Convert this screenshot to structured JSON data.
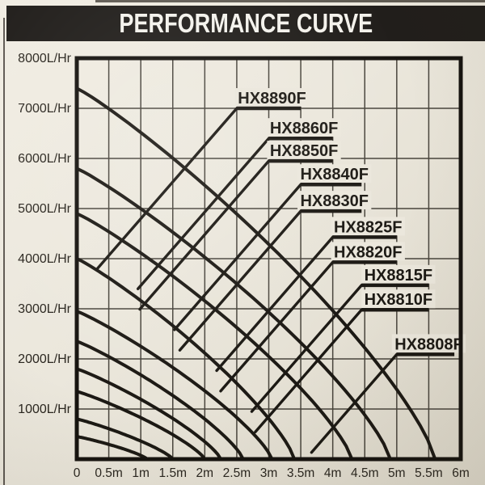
{
  "header": {
    "title": "PERFORMANCE CURVE"
  },
  "colors": {
    "paper": "#ebe7dc",
    "banner_bg": "#211e1b",
    "banner_text": "#f4f2ec",
    "ink": "#1c1914",
    "grid": "#48443c"
  },
  "chart_data": {
    "type": "line",
    "title": "PERFORMANCE CURVE",
    "grid": true,
    "xlim": [
      0,
      6
    ],
    "ylim": [
      0,
      8000
    ],
    "x_unit": "m",
    "y_unit": "L/Hr",
    "x_tick_values": [
      0,
      0.5,
      1,
      1.5,
      2,
      2.5,
      3,
      3.5,
      4,
      4.5,
      5,
      5.5,
      6
    ],
    "x_tick_labels": [
      "0",
      "0.5m",
      "1m",
      "1.5m",
      "2m",
      "2.5m",
      "3m",
      "3.5m",
      "4m",
      "4.5m",
      "5m",
      "5.5m",
      "6m"
    ],
    "y_tick_values": [
      1000,
      2000,
      3000,
      4000,
      5000,
      6000,
      7000,
      8000
    ],
    "y_tick_labels": [
      "1000L/Hr",
      "2000L/Hr",
      "3000L/Hr",
      "4000L/Hr",
      "5000L/Hr",
      "6000L/Hr",
      "7000L/Hr",
      "8000L/Hr"
    ],
    "series_note": "Each pump curve runs from its maximum flow at 0m head down to zero flow at maximum head; each label sits on a short horizontal rule joined to its curve by a straight leader line.",
    "series": [
      {
        "name": "HX8890F",
        "max_flow_lhr": 7400,
        "max_head_m": 5.6,
        "label": {
          "flow_level": 7000,
          "x_from_m": 2.5,
          "x_to_m": 3.5
        }
      },
      {
        "name": "HX8860F",
        "max_flow_lhr": 5800,
        "max_head_m": 4.9,
        "label": {
          "flow_level": 6400,
          "x_from_m": 3.0,
          "x_to_m": 4.0
        }
      },
      {
        "name": "HX8850F",
        "max_flow_lhr": 4900,
        "max_head_m": 4.3,
        "label": {
          "flow_level": 5950,
          "x_from_m": 3.0,
          "x_to_m": 4.0
        }
      },
      {
        "name": "HX8840F",
        "max_flow_lhr": 4000,
        "max_head_m": 3.4,
        "label": {
          "flow_level": 5480,
          "x_from_m": 3.5,
          "x_to_m": 4.45
        }
      },
      {
        "name": "HX8830F",
        "max_flow_lhr": 2950,
        "max_head_m": 3.05,
        "label": {
          "flow_level": 4950,
          "x_from_m": 3.5,
          "x_to_m": 4.45
        }
      },
      {
        "name": "HX8825F",
        "max_flow_lhr": 2350,
        "max_head_m": 2.6,
        "label": {
          "flow_level": 4430,
          "x_from_m": 4.0,
          "x_to_m": 5.0
        }
      },
      {
        "name": "HX8820F",
        "max_flow_lhr": 1800,
        "max_head_m": 2.25,
        "label": {
          "flow_level": 3930,
          "x_from_m": 4.0,
          "x_to_m": 5.0
        }
      },
      {
        "name": "HX8815F",
        "max_flow_lhr": 1350,
        "max_head_m": 2.0,
        "label": {
          "flow_level": 3470,
          "x_from_m": 4.45,
          "x_to_m": 5.5
        }
      },
      {
        "name": "HX8810F",
        "max_flow_lhr": 800,
        "max_head_m": 1.5,
        "label": {
          "flow_level": 2980,
          "x_from_m": 4.45,
          "x_to_m": 5.5
        }
      },
      {
        "name": "HX8808F",
        "max_flow_lhr": 450,
        "max_head_m": 1.1,
        "label": {
          "flow_level": 2090,
          "x_from_m": 5.0,
          "x_to_m": 5.9
        }
      }
    ]
  }
}
